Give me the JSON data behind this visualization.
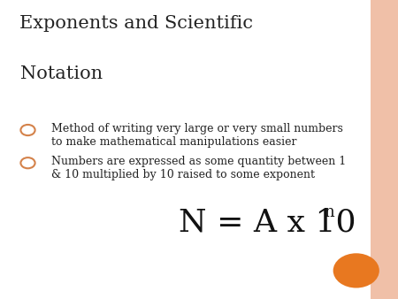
{
  "title_line1": "Exponents and Scientific",
  "title_line2": "Notation",
  "bullet1_line1": "Method of writing very large or very small numbers",
  "bullet1_line2": "to make mathematical manipulations easier",
  "bullet2_line1": "Numbers are expressed as some quantity between 1",
  "bullet2_line2": "& 10 multiplied by 10 raised to some exponent",
  "formula_main": "N = A x 10",
  "formula_exp": "n",
  "background_color": "#ffffff",
  "title_color": "#222222",
  "bullet_text_color": "#222222",
  "bullet_dot_color": "#d4824a",
  "formula_color": "#111111",
  "border_color": "#f0c0a8",
  "circle_color": "#e87820",
  "title_fontsize": 15,
  "bullet_fontsize": 9,
  "formula_fontsize": 26,
  "formula_exp_fontsize": 13
}
